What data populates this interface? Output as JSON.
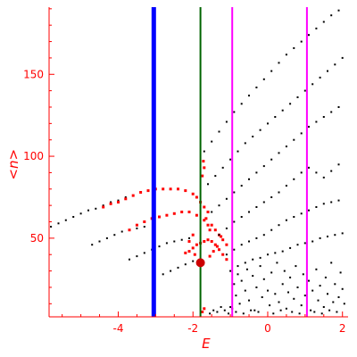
{
  "chart_data": {
    "type": "scatter",
    "title": "",
    "xlabel": "E",
    "ylabel": "<n>",
    "xlim": [
      -5.85,
      2.15
    ],
    "ylim": [
      2,
      191
    ],
    "x_ticks": [
      -4,
      -2,
      0,
      2
    ],
    "y_ticks": [
      50,
      100,
      150
    ],
    "x_tick_labels": [
      "-4",
      "-2",
      "0",
      "2"
    ],
    "y_tick_labels": [
      "50",
      "100",
      "150"
    ],
    "colors": {
      "axis": "#ff0000",
      "points_black": "#000000",
      "points_red": "#ff0000",
      "line_blue": "#0000ff",
      "line_green": "#006400",
      "line_magenta": "#ff00ff"
    },
    "vertical_lines": [
      {
        "x": -3.05,
        "color": "#0000ff"
      },
      {
        "x": -1.8,
        "color": "#006400"
      },
      {
        "x": -0.95,
        "color": "#ff00ff"
      },
      {
        "x": 1.05,
        "color": "#ff00ff"
      }
    ],
    "marker": {
      "x": -1.8,
      "y": 35,
      "color": "#cc0000"
    },
    "series": [
      {
        "color": "#000000",
        "values": [
          [
            -5.8,
            57
          ],
          [
            -5.6,
            59
          ],
          [
            -5.4,
            61
          ],
          [
            -5.2,
            63
          ],
          [
            -5.0,
            65
          ],
          [
            -4.8,
            67
          ],
          [
            -4.6,
            68
          ],
          [
            -4.4,
            70
          ],
          [
            -4.2,
            72
          ],
          [
            -4.0,
            73
          ],
          [
            -3.8,
            75
          ],
          [
            -3.6,
            76
          ],
          [
            -3.4,
            78
          ],
          [
            -3.2,
            79
          ]
        ]
      },
      {
        "color": "#ff0000",
        "values": [
          [
            -4.4,
            69
          ],
          [
            -4.2,
            71
          ],
          [
            -4.0,
            72
          ],
          [
            -3.8,
            74
          ],
          [
            -3.6,
            76
          ],
          [
            -3.4,
            78
          ],
          [
            -3.2,
            79
          ],
          [
            -3.0,
            80
          ],
          [
            -2.8,
            80
          ],
          [
            -2.6,
            80
          ],
          [
            -2.4,
            80
          ],
          [
            -2.2,
            79
          ],
          [
            -2.0,
            77
          ],
          [
            -1.9,
            75
          ],
          [
            -1.8,
            72
          ],
          [
            -1.7,
            69
          ],
          [
            -1.6,
            66
          ]
        ]
      },
      {
        "color": "#000000",
        "values": [
          [
            -4.7,
            46
          ],
          [
            -4.5,
            48
          ],
          [
            -4.3,
            50
          ],
          [
            -4.1,
            52
          ],
          [
            -3.9,
            54
          ],
          [
            -3.7,
            55
          ],
          [
            -3.5,
            56
          ],
          [
            -3.3,
            57
          ]
        ]
      },
      {
        "color": "#ff0000",
        "values": [
          [
            -3.7,
            55
          ],
          [
            -3.5,
            58
          ],
          [
            -3.3,
            60
          ],
          [
            -3.1,
            62
          ],
          [
            -2.9,
            63
          ],
          [
            -2.7,
            64
          ],
          [
            -2.5,
            65
          ],
          [
            -2.3,
            66
          ],
          [
            -2.1,
            66
          ],
          [
            -1.9,
            64
          ],
          [
            -1.7,
            61
          ],
          [
            -1.5,
            58
          ],
          [
            -1.4,
            55
          ],
          [
            -1.3,
            52
          ],
          [
            -1.2,
            49
          ],
          [
            -1.1,
            46
          ]
        ]
      },
      {
        "color": "#000000",
        "values": [
          [
            -3.7,
            37
          ],
          [
            -3.5,
            39
          ],
          [
            -3.3,
            41
          ],
          [
            -3.1,
            43
          ],
          [
            -2.9,
            45
          ],
          [
            -2.7,
            47
          ],
          [
            -2.5,
            48
          ],
          [
            -2.3,
            49
          ],
          [
            -2.1,
            50
          ]
        ]
      },
      {
        "color": "#ff0000",
        "values": [
          [
            -2.2,
            41
          ],
          [
            -2.1,
            42
          ],
          [
            -2.0,
            44
          ],
          [
            -1.9,
            46
          ],
          [
            -1.8,
            47
          ],
          [
            -1.7,
            48
          ],
          [
            -1.6,
            49
          ],
          [
            -1.5,
            48
          ],
          [
            -1.4,
            46
          ],
          [
            -1.3,
            43
          ],
          [
            -1.2,
            40
          ],
          [
            -1.1,
            37
          ]
        ]
      },
      {
        "color": "#000000",
        "values": [
          [
            -2.8,
            28
          ],
          [
            -2.6,
            30
          ],
          [
            -2.4,
            32
          ],
          [
            -2.2,
            34
          ],
          [
            -2.0,
            36
          ],
          [
            -1.8,
            37
          ]
        ]
      },
      {
        "color": "#000000",
        "values": [
          [
            -1.7,
            103
          ],
          [
            -1.5,
            109
          ],
          [
            -1.3,
            115
          ],
          [
            -1.1,
            121
          ],
          [
            -0.9,
            127
          ],
          [
            -0.7,
            132
          ],
          [
            -0.5,
            137
          ],
          [
            -0.3,
            142
          ],
          [
            -0.1,
            147
          ],
          [
            0.1,
            152
          ],
          [
            0.3,
            157
          ],
          [
            0.5,
            162
          ],
          [
            0.7,
            166
          ],
          [
            0.9,
            170
          ],
          [
            1.1,
            174
          ],
          [
            1.3,
            178
          ],
          [
            1.5,
            182
          ],
          [
            1.7,
            186
          ],
          [
            1.9,
            189
          ]
        ]
      },
      {
        "color": "#000000",
        "values": [
          [
            -1.6,
            83
          ],
          [
            -1.4,
            88
          ],
          [
            -1.2,
            93
          ],
          [
            -1.0,
            98
          ],
          [
            -0.8,
            103
          ],
          [
            -0.6,
            108
          ],
          [
            -0.4,
            112
          ],
          [
            -0.2,
            116
          ],
          [
            0.0,
            120
          ],
          [
            0.2,
            124
          ],
          [
            0.4,
            128
          ],
          [
            0.6,
            132
          ],
          [
            0.8,
            136
          ],
          [
            1.0,
            140
          ],
          [
            1.2,
            144
          ],
          [
            1.4,
            148
          ],
          [
            1.6,
            152
          ],
          [
            1.8,
            156
          ],
          [
            2.0,
            160
          ]
        ]
      },
      {
        "color": "#000000",
        "values": [
          [
            -1.5,
            66
          ],
          [
            -1.3,
            70
          ],
          [
            -1.1,
            74
          ],
          [
            -0.9,
            78
          ],
          [
            -0.7,
            82
          ],
          [
            -0.5,
            86
          ],
          [
            -0.3,
            90
          ],
          [
            -0.1,
            94
          ],
          [
            0.1,
            98
          ],
          [
            0.3,
            102
          ],
          [
            0.5,
            106
          ],
          [
            0.7,
            110
          ],
          [
            0.9,
            114
          ],
          [
            1.1,
            118
          ],
          [
            1.3,
            121
          ],
          [
            1.5,
            124
          ],
          [
            1.7,
            127
          ],
          [
            1.9,
            130
          ]
        ]
      },
      {
        "color": "#000000",
        "values": [
          [
            -1.3,
            52
          ],
          [
            -1.1,
            56
          ],
          [
            -0.9,
            60
          ],
          [
            -0.7,
            63
          ],
          [
            -0.5,
            66
          ],
          [
            -0.3,
            69
          ],
          [
            -0.1,
            72
          ],
          [
            0.1,
            75
          ],
          [
            0.3,
            78
          ],
          [
            0.5,
            82
          ],
          [
            0.7,
            86
          ],
          [
            0.9,
            90
          ],
          [
            1.1,
            93
          ],
          [
            1.3,
            90
          ],
          [
            1.5,
            87
          ],
          [
            1.7,
            91
          ],
          [
            1.9,
            95
          ]
        ]
      },
      {
        "color": "#000000",
        "values": [
          [
            -1.1,
            40
          ],
          [
            -0.9,
            43
          ],
          [
            -0.7,
            46
          ],
          [
            -0.5,
            48
          ],
          [
            -0.3,
            50
          ],
          [
            -0.1,
            52
          ],
          [
            0.1,
            55
          ],
          [
            0.3,
            58
          ],
          [
            0.5,
            61
          ],
          [
            0.7,
            63
          ],
          [
            0.9,
            65
          ],
          [
            1.1,
            67
          ],
          [
            1.3,
            69
          ],
          [
            1.5,
            71
          ],
          [
            1.7,
            72
          ],
          [
            1.9,
            73
          ]
        ]
      },
      {
        "color": "#000000",
        "values": [
          [
            -1.0,
            30
          ],
          [
            -0.8,
            33
          ],
          [
            -0.6,
            35
          ],
          [
            -0.4,
            37
          ],
          [
            -0.2,
            38
          ],
          [
            0.0,
            40
          ],
          [
            0.2,
            41
          ],
          [
            0.4,
            42
          ],
          [
            0.6,
            44
          ],
          [
            0.8,
            46
          ],
          [
            1.0,
            47
          ],
          [
            1.2,
            48
          ],
          [
            1.4,
            50
          ],
          [
            1.6,
            51
          ],
          [
            1.8,
            52
          ],
          [
            2.0,
            53
          ]
        ]
      },
      {
        "color": "#000000",
        "values": [
          [
            -1.0,
            8
          ],
          [
            -0.9,
            22
          ],
          [
            -0.85,
            15
          ],
          [
            -0.8,
            28
          ],
          [
            -0.75,
            10
          ],
          [
            -0.7,
            24
          ],
          [
            -0.6,
            18
          ],
          [
            -0.55,
            31
          ],
          [
            -0.5,
            12
          ],
          [
            -0.4,
            27
          ],
          [
            -0.35,
            6
          ],
          [
            -0.3,
            20
          ],
          [
            -0.2,
            33
          ],
          [
            -0.15,
            14
          ],
          [
            -0.1,
            25
          ],
          [
            0.0,
            18
          ],
          [
            0.05,
            9
          ],
          [
            0.1,
            29
          ],
          [
            0.2,
            16
          ],
          [
            0.25,
            35
          ],
          [
            0.3,
            11
          ],
          [
            0.4,
            22
          ],
          [
            0.45,
            30
          ],
          [
            0.5,
            7
          ],
          [
            0.55,
            17
          ],
          [
            0.6,
            26
          ],
          [
            0.7,
            13
          ],
          [
            0.75,
            33
          ],
          [
            0.8,
            20
          ],
          [
            0.9,
            9
          ],
          [
            0.95,
            28
          ],
          [
            1.0,
            15
          ],
          [
            1.1,
            24
          ],
          [
            1.15,
            6
          ],
          [
            1.2,
            18
          ],
          [
            1.3,
            31
          ],
          [
            1.35,
            12
          ],
          [
            1.4,
            21
          ],
          [
            1.5,
            8
          ],
          [
            1.55,
            26
          ],
          [
            1.6,
            16
          ],
          [
            1.7,
            35
          ],
          [
            1.75,
            11
          ],
          [
            1.8,
            22
          ],
          [
            1.9,
            14
          ],
          [
            1.95,
            29
          ],
          [
            2.0,
            19
          ],
          [
            2.05,
            10
          ]
        ]
      },
      {
        "color": "#000000",
        "values": [
          [
            -1.55,
            4
          ],
          [
            -1.45,
            6
          ],
          [
            -1.35,
            5
          ],
          [
            -1.25,
            8
          ],
          [
            -1.15,
            6
          ],
          [
            -1.05,
            4
          ],
          [
            -0.95,
            7
          ],
          [
            -0.85,
            5
          ],
          [
            -0.65,
            4
          ],
          [
            -0.45,
            6
          ],
          [
            -0.25,
            5
          ],
          [
            0.15,
            4
          ],
          [
            0.35,
            6
          ],
          [
            0.65,
            5
          ],
          [
            0.85,
            4
          ],
          [
            1.25,
            5
          ],
          [
            1.45,
            4
          ],
          [
            1.65,
            6
          ],
          [
            1.85,
            5
          ]
        ]
      },
      {
        "color": "#ff0000",
        "values": [
          [
            -1.7,
            93
          ],
          [
            -1.72,
            97
          ],
          [
            -1.75,
            88
          ],
          [
            -1.65,
            62
          ],
          [
            -1.6,
            58
          ],
          [
            -1.55,
            55
          ],
          [
            -1.25,
            51
          ],
          [
            -1.35,
            45
          ],
          [
            -1.45,
            42
          ],
          [
            -1.55,
            39
          ],
          [
            -2.1,
            48
          ],
          [
            -2.0,
            52
          ],
          [
            -1.95,
            40
          ],
          [
            -1.75,
            5
          ],
          [
            -1.7,
            7
          ]
        ]
      }
    ]
  }
}
